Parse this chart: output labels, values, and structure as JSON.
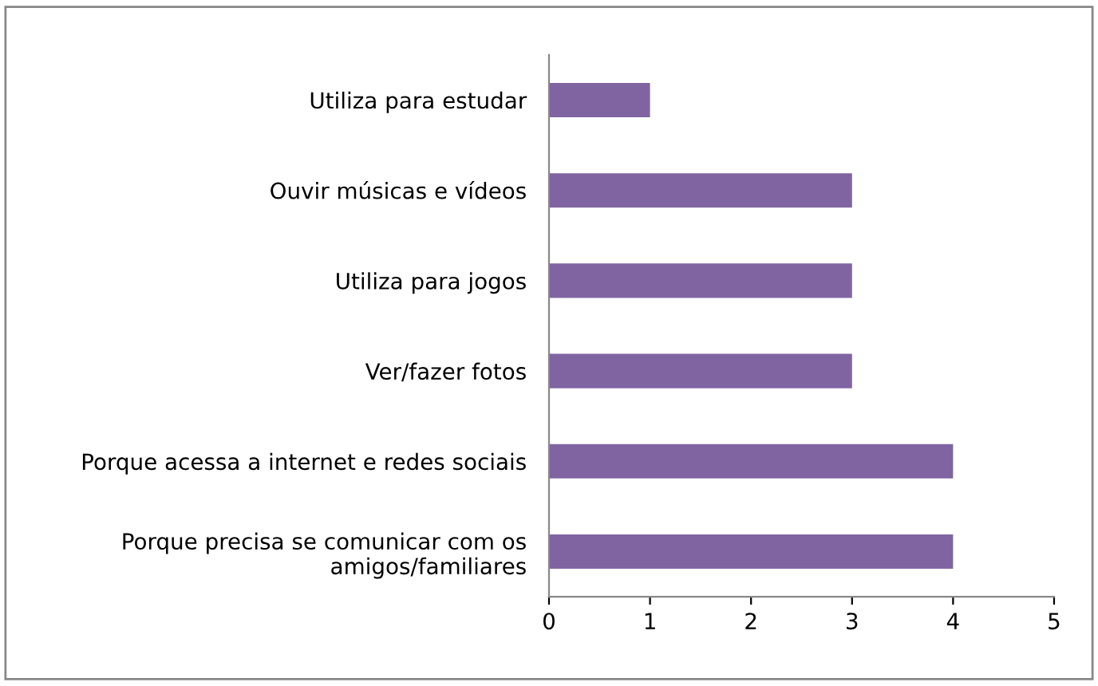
{
  "chart_data": {
    "type": "bar",
    "orientation": "horizontal",
    "categories": [
      "Utiliza para estudar",
      "Ouvir músicas e vídeos",
      "Utiliza para jogos",
      "Ver/fazer fotos",
      "Porque acessa a internet e redes sociais",
      "Porque precisa se comunicar com os\namigos/familiares"
    ],
    "values": [
      1,
      3,
      3,
      3,
      4,
      4
    ],
    "color": "#8064a2",
    "xlim": [
      0,
      5
    ],
    "xticks": [
      0,
      1,
      2,
      3,
      4,
      5
    ],
    "grid": false
  }
}
